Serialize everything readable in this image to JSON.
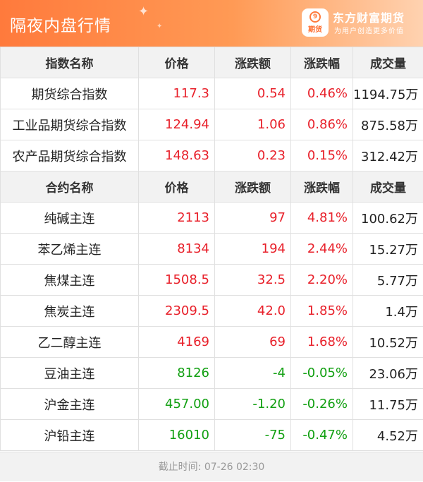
{
  "header": {
    "title": "隔夜内盘行情",
    "brand_name": "东方财富期货",
    "brand_badge": "期货",
    "brand_slogan": "为用户创造更多价值",
    "gradient_start": "#ff7a3c",
    "gradient_end": "#ffd2b0"
  },
  "colors": {
    "up": "#e8202a",
    "down": "#12a012",
    "header_bg": "#f2f2f2"
  },
  "index_columns": [
    "指数名称",
    "价格",
    "涨跌额",
    "涨跌幅",
    "成交量"
  ],
  "index_rows": [
    {
      "name": "期货综合指数",
      "price": "117.3",
      "change": "0.54",
      "pct": "0.46%",
      "volume": "1194.75万",
      "dir": "up"
    },
    {
      "name": "工业品期货综合指数",
      "price": "124.94",
      "change": "1.06",
      "pct": "0.86%",
      "volume": "875.58万",
      "dir": "up"
    },
    {
      "name": "农产品期货综合指数",
      "price": "148.63",
      "change": "0.23",
      "pct": "0.15%",
      "volume": "312.42万",
      "dir": "up"
    }
  ],
  "contract_columns": [
    "合约名称",
    "价格",
    "涨跌额",
    "涨跌幅",
    "成交量"
  ],
  "contract_rows": [
    {
      "name": "纯碱主连",
      "price": "2113",
      "change": "97",
      "pct": "4.81%",
      "volume": "100.62万",
      "dir": "up"
    },
    {
      "name": "苯乙烯主连",
      "price": "8134",
      "change": "194",
      "pct": "2.44%",
      "volume": "15.27万",
      "dir": "up"
    },
    {
      "name": "焦煤主连",
      "price": "1508.5",
      "change": "32.5",
      "pct": "2.20%",
      "volume": "5.77万",
      "dir": "up"
    },
    {
      "name": "焦炭主连",
      "price": "2309.5",
      "change": "42.0",
      "pct": "1.85%",
      "volume": "1.4万",
      "dir": "up"
    },
    {
      "name": "乙二醇主连",
      "price": "4169",
      "change": "69",
      "pct": "1.68%",
      "volume": "10.52万",
      "dir": "up"
    },
    {
      "name": "豆油主连",
      "price": "8126",
      "change": "-4",
      "pct": "-0.05%",
      "volume": "23.06万",
      "dir": "down"
    },
    {
      "name": "沪金主连",
      "price": "457.00",
      "change": "-1.20",
      "pct": "-0.26%",
      "volume": "11.75万",
      "dir": "down"
    },
    {
      "name": "沪铅主连",
      "price": "16010",
      "change": "-75",
      "pct": "-0.47%",
      "volume": "4.52万",
      "dir": "down"
    }
  ],
  "footer": {
    "text": "截止时间:  07-26 02:30"
  }
}
